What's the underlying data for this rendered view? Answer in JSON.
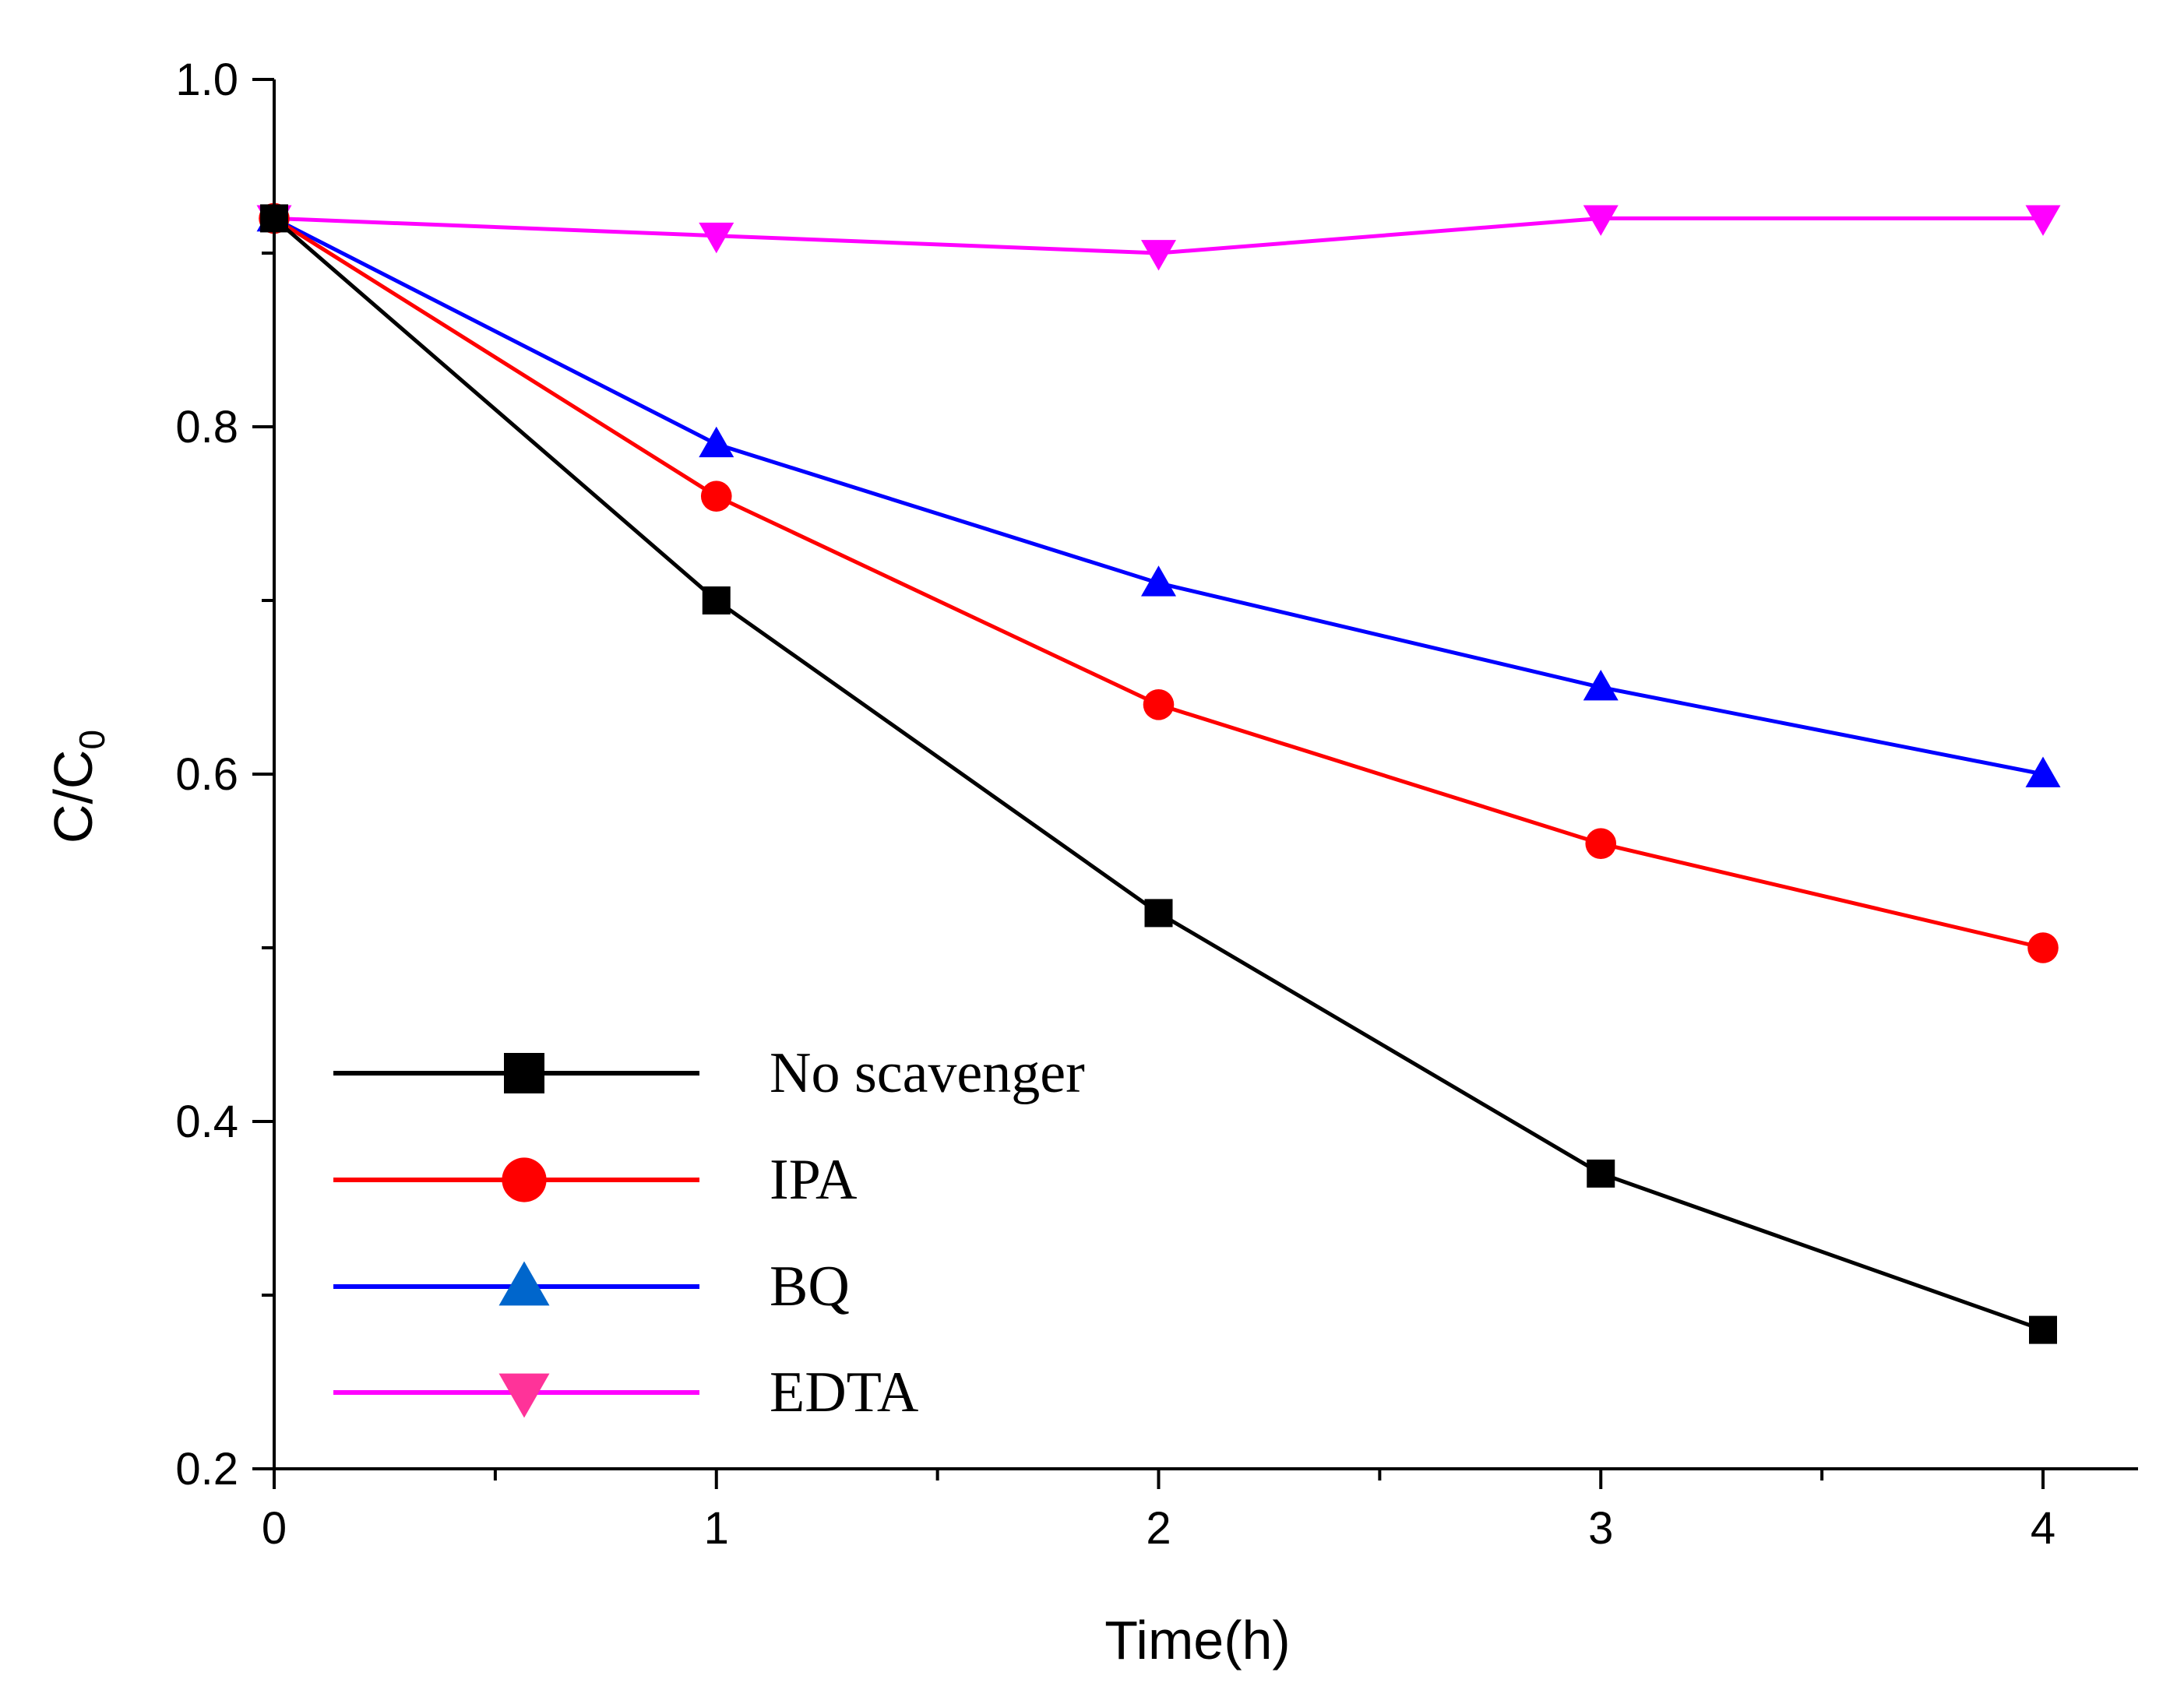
{
  "chart_data": {
    "type": "line",
    "xlabel": "Time(h)",
    "ylabel": "C/C",
    "ylabel_subscript": "0",
    "xlim": [
      0,
      4.2
    ],
    "ylim": [
      0.2,
      1.0
    ],
    "x_ticks": [
      0,
      1,
      2,
      3,
      4
    ],
    "x_tick_labels": [
      "0",
      "1",
      "2",
      "3",
      "4"
    ],
    "x_minor_ticks": [
      0.5,
      1.5,
      2.5,
      3.5
    ],
    "y_ticks": [
      0.2,
      0.4,
      0.6,
      0.8,
      1.0
    ],
    "y_tick_labels": [
      "0.2",
      "0.4",
      "0.6",
      "0.8",
      "1.0"
    ],
    "y_minor_ticks": [
      0.3,
      0.5,
      0.7,
      0.9
    ],
    "grid": false,
    "legend_position": "bottom-left",
    "x": [
      0,
      1,
      2,
      3,
      4
    ],
    "series": [
      {
        "name": "No scavenger",
        "values": [
          0.92,
          0.7,
          0.52,
          0.37,
          0.28
        ],
        "color": "#000000",
        "marker": "square"
      },
      {
        "name": "IPA",
        "values": [
          0.92,
          0.76,
          0.64,
          0.56,
          0.5
        ],
        "color": "#ff0000",
        "marker": "circle"
      },
      {
        "name": "BQ",
        "values": [
          0.92,
          0.79,
          0.71,
          0.65,
          0.6
        ],
        "color": "#0000ff",
        "marker": "triangle-up"
      },
      {
        "name": "EDTA",
        "values": [
          0.92,
          0.91,
          0.9,
          0.92,
          0.92
        ],
        "color": "#ff00ff",
        "marker": "triangle-down"
      }
    ]
  }
}
